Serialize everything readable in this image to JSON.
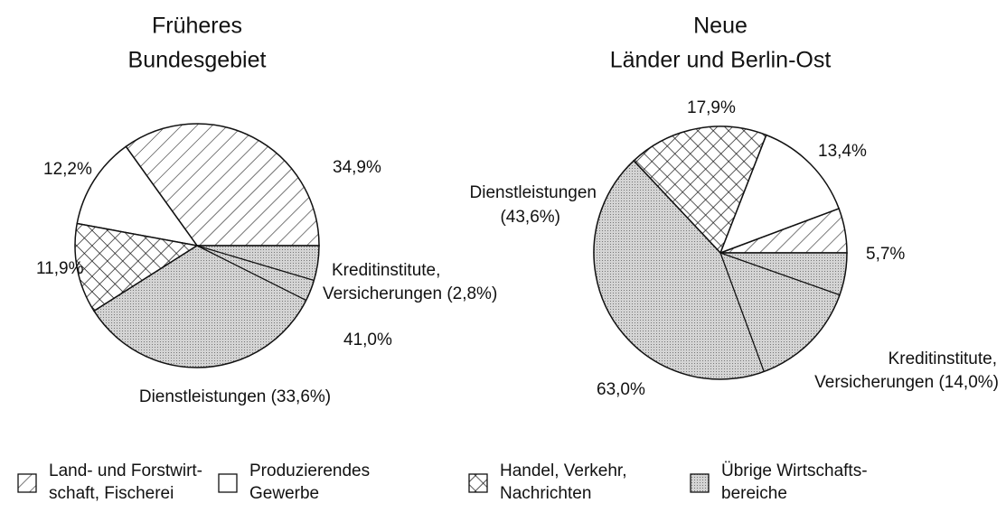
{
  "chart_data": {
    "type": "pie",
    "categories": [
      [
        "Land- und Forstwirt-",
        "schaft, Fischerei"
      ],
      [
        "Produzierendes",
        "Gewerbe"
      ],
      [
        "Handel, Verkehr,",
        "Nachrichten"
      ],
      [
        "Übrige Wirtschafts-",
        "bereiche"
      ]
    ],
    "patterns": [
      "hatch",
      "white",
      "crosshatch",
      "dots"
    ],
    "pies": [
      {
        "title": [
          "Früheres",
          "Bundesgebiet"
        ],
        "values": [
          34.9,
          12.2,
          11.9,
          41.0
        ],
        "value_labels": [
          "34,9%",
          "12,2%",
          "11,9%",
          "41,0%"
        ],
        "annotations": [
          {
            "value": 33.6,
            "label": [
              "Dienstleistungen (33,6%)"
            ]
          },
          {
            "value": 2.8,
            "label": [
              "Kreditinstitute,",
              "Versicherungen (2,8%)"
            ]
          }
        ]
      },
      {
        "title": [
          "Neue",
          "Länder und Berlin-Ost"
        ],
        "values": [
          5.7,
          13.4,
          17.9,
          63.0
        ],
        "value_labels": [
          "5,7%",
          "13,4%",
          "17,9%",
          "63,0%"
        ],
        "annotations": [
          {
            "value": 43.6,
            "label": [
              "Dienstleistungen",
              "(43,6%)"
            ]
          },
          {
            "value": 14.0,
            "label": [
              "Kreditinstitute,",
              "Versicherungen (14,0%)"
            ]
          }
        ]
      }
    ]
  }
}
